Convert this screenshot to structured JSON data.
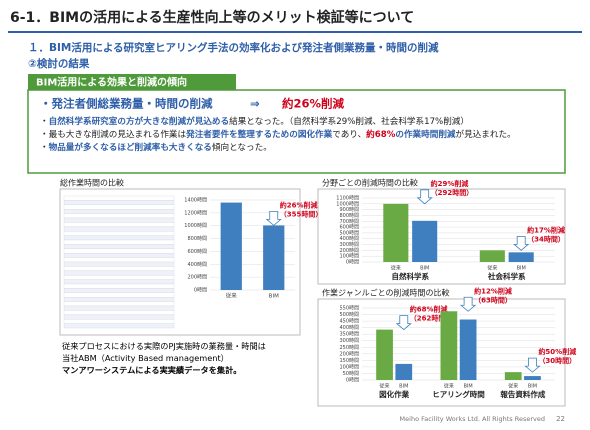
{
  "header": {
    "title": "6-1．BIMの活用による生産性向上等のメリット検証等について",
    "subtitle": "１．BIM活用による研究室ヒアリング手法の効率化および発注者側業務量・時間の削減",
    "section": "②検討の結果"
  },
  "summary": {
    "tab": "BIM活用による効果と削減の傾向",
    "headline": "・発注者側総業務量・時間の削減",
    "arrow": "⇒",
    "result": "約26%削減",
    "bullets": [
      [
        {
          "text": "・",
          "style": "black"
        },
        {
          "text": "自然科学系研究室の方が大きな削減が見込める",
          "style": "blue"
        },
        {
          "text": "結果となった。（自然科学系29%削減、社会科学系17%削減）",
          "style": "black"
        }
      ],
      [
        {
          "text": "・最も大きな削減の見込まれる作業は",
          "style": "black"
        },
        {
          "text": "発注者要件を整理するための図化作業",
          "style": "blue"
        },
        {
          "text": "であり、",
          "style": "black"
        },
        {
          "text": "約68%",
          "style": "red"
        },
        {
          "text": "の作業時間削減",
          "style": "blue"
        },
        {
          "text": "が見込まれた。",
          "style": "black"
        }
      ],
      [
        {
          "text": "・",
          "style": "black"
        },
        {
          "text": "物品量が多くなるほど削減率も大きくなる",
          "style": "blue"
        },
        {
          "text": "傾向となった。",
          "style": "black"
        }
      ]
    ]
  },
  "chart_data": [
    {
      "type": "bar",
      "title": "総作業時間の比較",
      "categories": [
        "従来",
        "BIM"
      ],
      "values": [
        1360,
        1005
      ],
      "color": "#3f7fbf",
      "ylim": [
        0,
        1400
      ],
      "yticks": [
        {
          "value": 0,
          "label": "0時間"
        },
        {
          "value": 200,
          "label": "200時間"
        },
        {
          "value": 400,
          "label": "400時間"
        },
        {
          "value": 600,
          "label": "600時間"
        },
        {
          "value": 800,
          "label": "800時間"
        },
        {
          "value": 1000,
          "label": "1000時間"
        },
        {
          "value": 1200,
          "label": "1200時間"
        },
        {
          "value": 1400,
          "label": "1400時間"
        }
      ],
      "annotations": [
        null,
        [
          "約26%削減",
          "（355時間）"
        ]
      ],
      "notes": [
        "従来プロセスにおける実際のPJ実施時の業務量・時間は",
        "当社ABM（Activity Based management）",
        "マンアワーシステムによる実実績データを集計。"
      ]
    },
    {
      "type": "bar",
      "title": "分野ごとの削減時間の比較",
      "categories": [
        "自然科学系",
        "社会科学系"
      ],
      "series": [
        {
          "name": "従来",
          "color": "#6aaa45",
          "values": [
            1000,
            200
          ]
        },
        {
          "name": "BIM",
          "color": "#3f7fbf",
          "values": [
            708,
            166
          ]
        }
      ],
      "ylim": [
        0,
        1100
      ],
      "yticks": [
        {
          "value": 0,
          "label": "0時間"
        },
        {
          "value": 100,
          "label": "100時間"
        },
        {
          "value": 200,
          "label": "200時間"
        },
        {
          "value": 300,
          "label": "300時間"
        },
        {
          "value": 400,
          "label": "400時間"
        },
        {
          "value": 500,
          "label": "500時間"
        },
        {
          "value": 600,
          "label": "600時間"
        },
        {
          "value": 700,
          "label": "700時間"
        },
        {
          "value": 800,
          "label": "800時間"
        },
        {
          "value": 900,
          "label": "900時間"
        },
        {
          "value": 1000,
          "label": "1000時間"
        },
        {
          "value": 1100,
          "label": "1100時間"
        }
      ],
      "annotations": [
        [
          "約29%削減",
          "（292時間）"
        ],
        [
          "約17%削減",
          "（34時間）"
        ]
      ]
    },
    {
      "type": "bar",
      "title": "作業ジャンルごとの削減時間の比較",
      "categories": [
        "図化作業",
        "ヒアリング時間",
        "報告資料作成"
      ],
      "series": [
        {
          "name": "従来",
          "color": "#6aaa45",
          "values": [
            385,
            525,
            60
          ]
        },
        {
          "name": "BIM",
          "color": "#3f7fbf",
          "values": [
            123,
            462,
            30
          ]
        }
      ],
      "ylim": [
        0,
        550
      ],
      "yticks": [
        {
          "value": 0,
          "label": "0時間"
        },
        {
          "value": 50,
          "label": "50時間"
        },
        {
          "value": 100,
          "label": "100時間"
        },
        {
          "value": 150,
          "label": "150時間"
        },
        {
          "value": 200,
          "label": "200時間"
        },
        {
          "value": 250,
          "label": "250時間"
        },
        {
          "value": 300,
          "label": "300時間"
        },
        {
          "value": 350,
          "label": "350時間"
        },
        {
          "value": 400,
          "label": "400時間"
        },
        {
          "value": 450,
          "label": "450時間"
        },
        {
          "value": 500,
          "label": "500時間"
        },
        {
          "value": 550,
          "label": "550時間"
        }
      ],
      "annotations": [
        [
          "約68%削減",
          "（262時間）"
        ],
        [
          "約12%削減",
          "（63時間）"
        ],
        [
          "約50%削減",
          "（30時間）"
        ]
      ]
    }
  ],
  "footer": {
    "text": "Meiho Facility Works Ltd. All Rights Reserved",
    "page": 22
  }
}
